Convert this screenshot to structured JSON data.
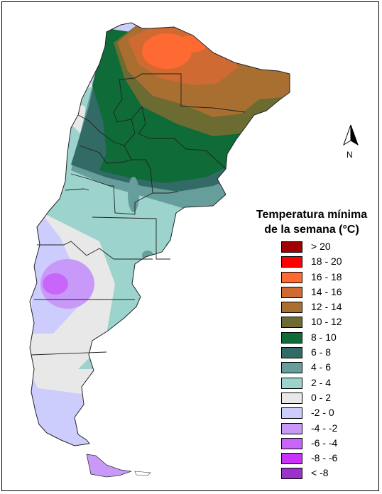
{
  "legend": {
    "title_line1": "Temperatura mínima",
    "title_line2": "de la semana (°C)",
    "items": [
      {
        "label": "> 20",
        "color": "#a00000"
      },
      {
        "label": "18 - 20",
        "color": "#ff0000"
      },
      {
        "label": "16 - 18",
        "color": "#ff6a33"
      },
      {
        "label": "14 - 16",
        "color": "#cf6a33"
      },
      {
        "label": "12 - 14",
        "color": "#a86f30"
      },
      {
        "label": "10 - 12",
        "color": "#6b6b32"
      },
      {
        "label": "8 - 10",
        "color": "#0f6b37"
      },
      {
        "label": "6 - 8",
        "color": "#326a66"
      },
      {
        "label": "4 - 6",
        "color": "#669e9b"
      },
      {
        "label": "2 - 4",
        "color": "#9cd4cd"
      },
      {
        "label": "0 - 2",
        "color": "#e8e8e8"
      },
      {
        "label": "-2 - 0",
        "color": "#cccdfd"
      },
      {
        "label": "-4 - -2",
        "color": "#c999fa"
      },
      {
        "label": "-6 - -4",
        "color": "#c966fa"
      },
      {
        "label": "-8 - -6",
        "color": "#c832fa"
      },
      {
        "label": "< -8",
        "color": "#9a33cc"
      }
    ]
  },
  "north_arrow": {
    "label": "N"
  }
}
